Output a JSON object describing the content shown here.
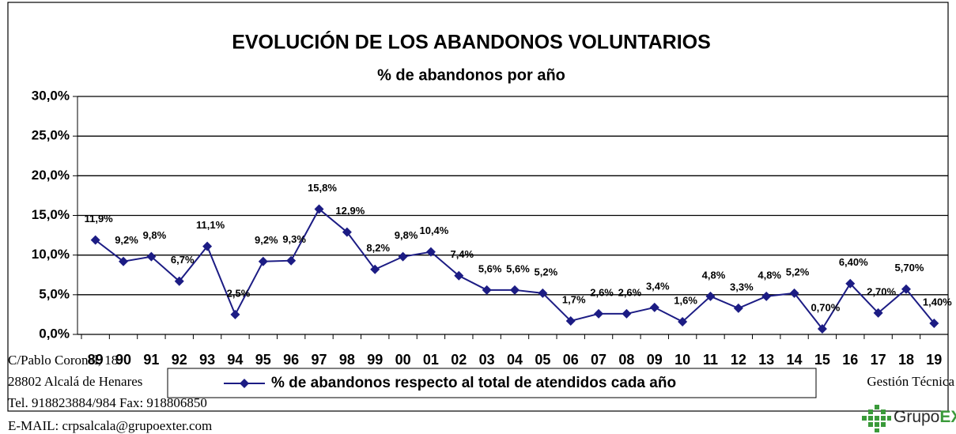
{
  "chart_data": {
    "type": "line",
    "title": "EVOLUCIÓN DE LOS ABANDONOS VOLUNTARIOS",
    "subtitle": "% de abandonos por año",
    "categories": [
      "89",
      "90",
      "91",
      "92",
      "93",
      "94",
      "95",
      "96",
      "97",
      "98",
      "99",
      "00",
      "01",
      "02",
      "03",
      "04",
      "05",
      "06",
      "07",
      "08",
      "09",
      "10",
      "11",
      "12",
      "13",
      "14",
      "15",
      "16",
      "17",
      "18",
      "19"
    ],
    "series": [
      {
        "name": "% de abandonos respecto al total de atendidos cada año",
        "color": "#1c1c84",
        "values": [
          11.9,
          9.2,
          9.8,
          6.7,
          11.1,
          2.5,
          9.2,
          9.3,
          15.8,
          12.9,
          8.2,
          9.8,
          10.4,
          7.4,
          5.6,
          5.6,
          5.2,
          1.7,
          2.6,
          2.6,
          3.4,
          1.6,
          4.8,
          3.3,
          4.8,
          5.2,
          0.7,
          6.4,
          2.7,
          5.7,
          1.4
        ],
        "value_labels": [
          "11,9%",
          "9,2%",
          "9,8%",
          "6,7%",
          "11,1%",
          "2,5%",
          "9,2%",
          "9,3%",
          "15,8%",
          "12,9%",
          "8,2%",
          "9,8%",
          "10,4%",
          "7,4%",
          "5,6%",
          "5,6%",
          "5,2%",
          "1,7%",
          "2,6%",
          "2,6%",
          "3,4%",
          "1,6%",
          "4,8%",
          "3,3%",
          "4,8%",
          "5,2%",
          "0,70%",
          "6,40%",
          "2,70%",
          "5,70%",
          "1,40%"
        ]
      }
    ],
    "ylim": [
      0,
      30
    ],
    "yticks": [
      {
        "value": 0,
        "label": "0,0%"
      },
      {
        "value": 5,
        "label": "5,0%"
      },
      {
        "value": 10,
        "label": "10,0%"
      },
      {
        "value": 15,
        "label": "15,0%"
      },
      {
        "value": 20,
        "label": "20,0%"
      },
      {
        "value": 25,
        "label": "25,0%"
      },
      {
        "value": 30,
        "label": "30,0%"
      }
    ],
    "grid": true,
    "legend": "bottom"
  },
  "footer": {
    "address": "C/Pablo Coronel, 18",
    "city": "28802 Alcalá de Henares",
    "phone": "Tel. 918823884/984 Fax: 918806850",
    "email": "E-MAIL: crpsalcala@grupoexter.com",
    "department": "Gestión Técnica",
    "logo_left": "Grupo",
    "logo_right": "EXTER"
  }
}
